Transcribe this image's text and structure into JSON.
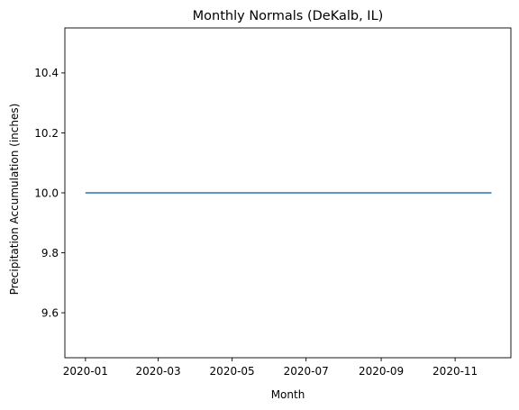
{
  "chart_data": {
    "type": "line",
    "title": "Monthly Normals (DeKalb, IL)",
    "xlabel": "Month",
    "ylabel": "Precipitation Accumulation (inches)",
    "x": [
      "2020-01-01",
      "2020-02-01",
      "2020-03-01",
      "2020-04-01",
      "2020-05-01",
      "2020-06-01",
      "2020-07-01",
      "2020-08-01",
      "2020-09-01",
      "2020-10-01",
      "2020-11-01",
      "2020-12-01"
    ],
    "series": [
      {
        "values": [
          10.0,
          10.0,
          10.0,
          10.0,
          10.0,
          10.0,
          10.0,
          10.0,
          10.0,
          10.0,
          10.0,
          10.0
        ],
        "color": "#1f77b4"
      }
    ],
    "xlim": [
      "2019-12-15",
      "2020-12-17"
    ],
    "ylim": [
      9.45,
      10.55
    ],
    "xticks": [
      "2020-01",
      "2020-03",
      "2020-05",
      "2020-07",
      "2020-09",
      "2020-11"
    ],
    "yticks": [
      "9.6",
      "9.8",
      "10.0",
      "10.2",
      "10.4"
    ],
    "grid": false,
    "legend": "none"
  }
}
